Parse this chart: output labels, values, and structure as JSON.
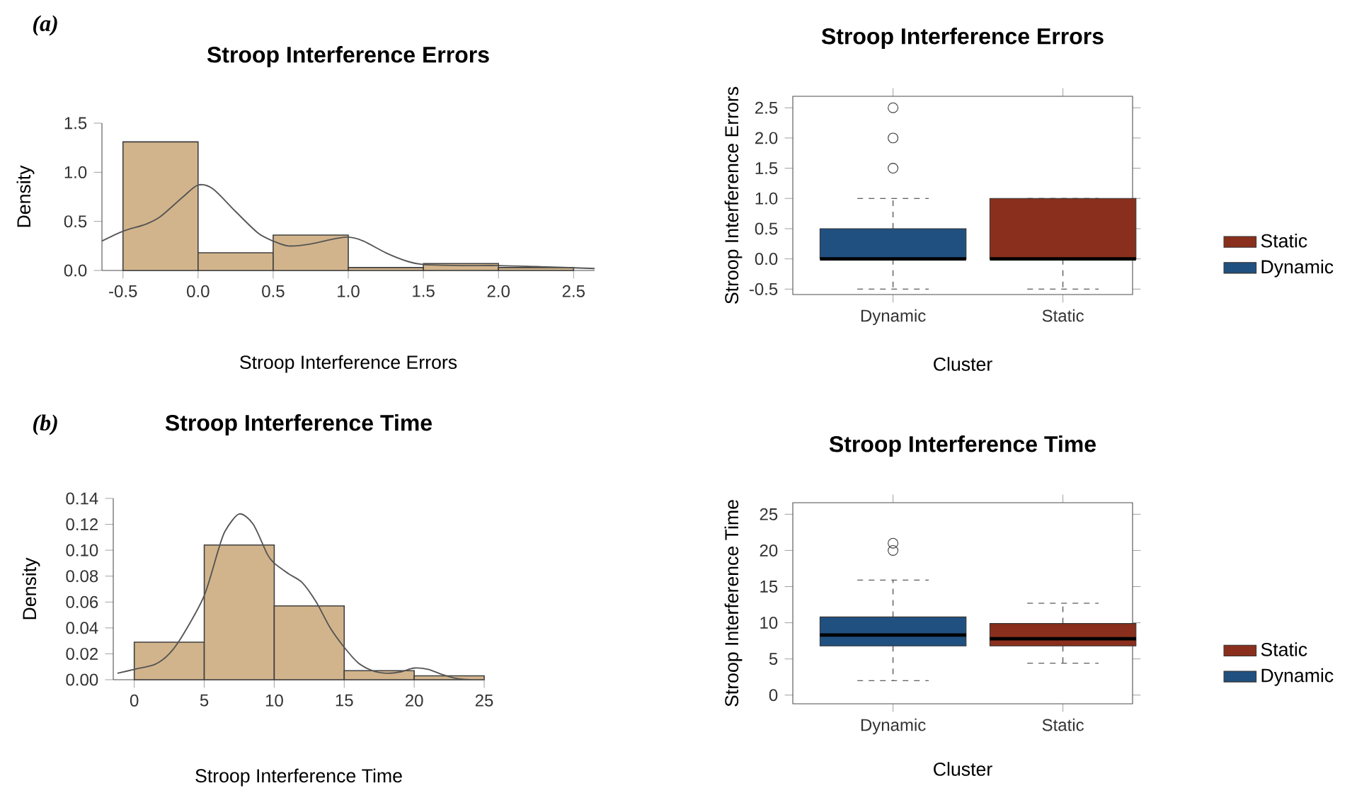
{
  "chart_data": [
    {
      "type": "histogram",
      "title": "Stroop Interference Errors",
      "xlabel": "Stroop Interference Errors",
      "ylabel": "Density",
      "annotations": [
        "(a)"
      ],
      "color": "#d2b48c",
      "bins": [
        -0.5,
        0,
        0.5,
        1,
        1.5,
        2,
        2.5
      ],
      "values": [
        1.31,
        0.18,
        0.36,
        0.03,
        0.07,
        0.03
      ],
      "series": [
        {
          "type": "line",
          "color": "#555555",
          "x": [
            -0.64,
            -0.5,
            -0.35,
            -0.25,
            -0.1,
            0,
            0.1,
            0.25,
            0.4,
            0.5,
            0.6,
            0.75,
            0.9,
            1.0,
            1.1,
            1.25,
            1.4,
            1.5,
            1.75,
            2.0,
            2.25,
            2.64
          ],
          "values": [
            0.3,
            0.4,
            0.47,
            0.55,
            0.75,
            0.87,
            0.83,
            0.6,
            0.38,
            0.3,
            0.25,
            0.27,
            0.32,
            0.34,
            0.3,
            0.18,
            0.09,
            0.06,
            0.05,
            0.05,
            0.04,
            0.02
          ]
        }
      ],
      "xlim": [
        -0.64,
        2.64
      ],
      "ylim": [
        0,
        1.5
      ],
      "xticks": [
        -0.5,
        {
          "value": 0,
          "label": "0.0"
        },
        0.5,
        {
          "value": 1,
          "label": "1.0"
        },
        1.5,
        {
          "value": 2,
          "label": "2.0"
        },
        2.5
      ],
      "yticks": [
        {
          "value": 0,
          "label": "0.0"
        },
        0.5,
        {
          "value": 1,
          "label": "1.0"
        },
        1.5
      ]
    },
    {
      "type": "box",
      "title": "Stroop Interference Errors",
      "xlabel": "Cluster",
      "ylabel": "Stroop Interference Errors",
      "categories": [
        "Dynamic",
        "Static"
      ],
      "series": [
        {
          "name": "Static",
          "color": "#8a2f1d",
          "boxes": [
            null,
            {
              "low": -0.5,
              "q1": 0,
              "median": 0,
              "q3": 1,
              "high": 1
            }
          ]
        },
        {
          "name": "Dynamic",
          "color": "#20507f",
          "boxes": [
            {
              "low": -0.5,
              "q1": 0,
              "median": 0,
              "q3": 0.5,
              "high": 1,
              "outliers": [
                1.5,
                2,
                2.5
              ]
            },
            null
          ]
        }
      ],
      "ylim": [
        -0.59,
        2.69
      ],
      "yticks": [
        -0.5,
        {
          "value": 0,
          "label": "0.0"
        },
        0.5,
        {
          "value": 1,
          "label": "1.0"
        },
        1.5,
        {
          "value": 2,
          "label": "2.0"
        },
        2.5
      ],
      "legend": "right",
      "marker": "circle"
    },
    {
      "type": "histogram",
      "title": "Stroop Interference Time",
      "xlabel": "Stroop Interference Time",
      "ylabel": "Density",
      "annotations": [
        "(b)"
      ],
      "color": "#d2b48c",
      "bins": [
        0,
        5,
        10,
        15,
        20,
        25
      ],
      "values": [
        0.029,
        0.104,
        0.057,
        0.007,
        0.003
      ],
      "series": [
        {
          "type": "line",
          "color": "#555555",
          "x": [
            -1.2,
            0,
            1.5,
            2.5,
            3.5,
            5,
            6,
            6.5,
            7.5,
            8.5,
            9.5,
            10,
            11,
            12,
            13,
            14,
            15,
            16,
            17,
            18,
            19,
            20,
            21,
            22,
            23,
            24
          ],
          "values": [
            0.005,
            0.008,
            0.012,
            0.02,
            0.035,
            0.065,
            0.1,
            0.115,
            0.128,
            0.12,
            0.097,
            0.09,
            0.082,
            0.075,
            0.06,
            0.04,
            0.025,
            0.013,
            0.007,
            0.005,
            0.006,
            0.009,
            0.008,
            0.004,
            0.001,
            0.0
          ]
        }
      ],
      "xlim": [
        -1.5,
        25
      ],
      "ylim": [
        0,
        0.14
      ],
      "xticks": [
        0,
        5,
        10,
        15,
        20,
        25
      ],
      "yticks": [
        {
          "value": 0,
          "label": "0.00"
        },
        0.02,
        0.04,
        0.06,
        0.08,
        {
          "value": 0.1,
          "label": "0.10"
        },
        0.12,
        0.14
      ]
    },
    {
      "type": "box",
      "title": "Stroop Interference Time",
      "xlabel": "Cluster",
      "ylabel": "Stroop Interference Time",
      "categories": [
        "Dynamic",
        "Static"
      ],
      "series": [
        {
          "name": "Static",
          "color": "#8a2f1d",
          "boxes": [
            null,
            {
              "low": 4.4,
              "q1": 6.8,
              "median": 7.8,
              "q3": 9.9,
              "high": 12.7
            }
          ]
        },
        {
          "name": "Dynamic",
          "color": "#20507f",
          "boxes": [
            {
              "low": 2,
              "q1": 6.8,
              "median": 8.3,
              "q3": 10.8,
              "high": 15.9,
              "outliers": [
                20,
                21
              ]
            },
            null
          ]
        }
      ],
      "ylim": [
        -1.2,
        26.6
      ],
      "yticks": [
        0,
        5,
        10,
        15,
        20,
        25
      ],
      "legend": "right",
      "marker": "circle"
    }
  ]
}
